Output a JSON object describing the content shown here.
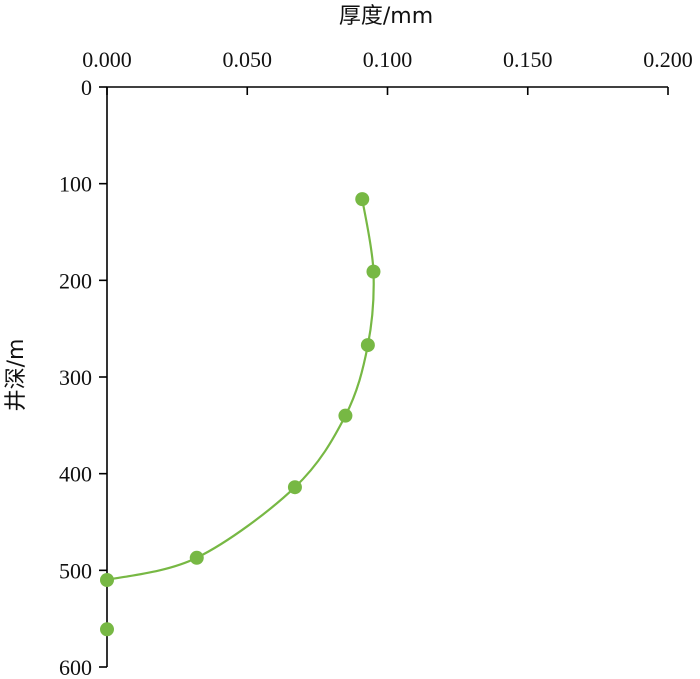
{
  "chart_data": {
    "type": "scatter",
    "x_axis_position": "top",
    "y_axis_inverted": true,
    "xlabel": "厚度/mm",
    "ylabel": "井深/m",
    "xlim": [
      0,
      0.2
    ],
    "ylim": [
      0,
      600
    ],
    "x_ticks": [
      "0.000",
      "0.050",
      "0.100",
      "0.150",
      "0.200"
    ],
    "y_ticks": [
      "0",
      "100",
      "200",
      "300",
      "400",
      "500",
      "600"
    ],
    "grid": false,
    "smooth_line": true,
    "colors": {
      "series": "#77b844"
    },
    "series": [
      {
        "x": [
          0.091,
          0.095,
          0.093,
          0.085,
          0.067,
          0.032,
          0.0,
          0.0
        ],
        "y": [
          116,
          191,
          267,
          340,
          414,
          487,
          510,
          561
        ]
      }
    ]
  }
}
